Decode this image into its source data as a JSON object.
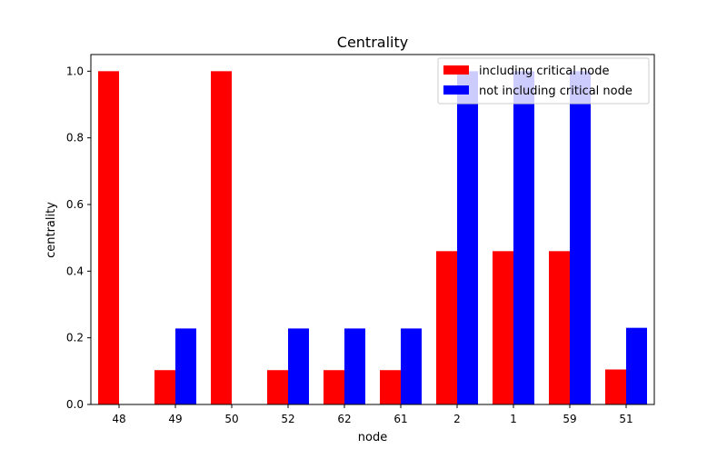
{
  "chart_data": {
    "type": "bar",
    "title": "Centrality",
    "xlabel": "node",
    "ylabel": "centrality",
    "categories": [
      "48",
      "49",
      "50",
      "52",
      "62",
      "61",
      "2",
      "1",
      "59",
      "51"
    ],
    "series": [
      {
        "name": "including critical node",
        "color": "#ff0000",
        "values": [
          1.0,
          0.103,
          1.0,
          0.103,
          0.103,
          0.103,
          0.46,
          0.46,
          0.46,
          0.105
        ]
      },
      {
        "name": "not including critical node",
        "color": "#0000ff",
        "values": [
          0.0,
          0.228,
          0.0,
          0.228,
          0.228,
          0.228,
          1.0,
          1.0,
          1.0,
          0.23
        ]
      }
    ],
    "ylim": [
      0,
      1.05
    ],
    "yticks": [
      "0.0",
      "0.2",
      "0.4",
      "0.6",
      "0.8",
      "1.0"
    ],
    "legend_position": "top-right",
    "grid": false
  }
}
